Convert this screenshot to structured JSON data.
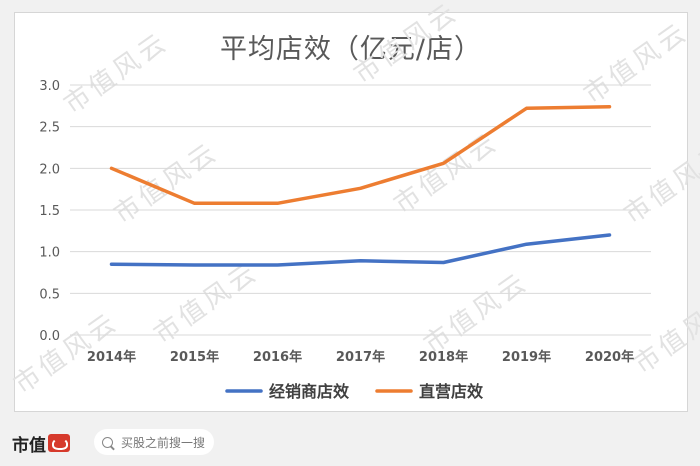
{
  "watermark_text": "市值风云",
  "chart_data": {
    "type": "line",
    "title": "平均店效（亿元/店）",
    "xlabel": "",
    "ylabel": "",
    "categories": [
      "2014年",
      "2015年",
      "2016年",
      "2017年",
      "2018年",
      "2019年",
      "2020年"
    ],
    "ylim": [
      0,
      3.0
    ],
    "yticks": [
      "0.0",
      "0.5",
      "1.0",
      "1.5",
      "2.0",
      "2.5",
      "3.0"
    ],
    "grid": true,
    "legend_position": "bottom",
    "series": [
      {
        "name": "经销商店效",
        "color": "#4472c4",
        "values": [
          0.85,
          0.84,
          0.84,
          0.89,
          0.87,
          1.09,
          1.2
        ]
      },
      {
        "name": "直营店效",
        "color": "#ed7d31",
        "values": [
          2.0,
          1.58,
          1.58,
          1.76,
          2.06,
          2.72,
          2.74
        ]
      }
    ]
  },
  "footer": {
    "brand_label": "市值",
    "search_placeholder": "买股之前搜一搜"
  }
}
